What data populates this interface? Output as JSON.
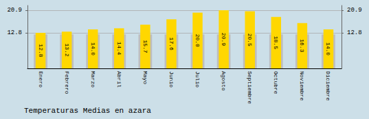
{
  "chart_data": {
    "type": "bar",
    "title": "Temperaturas Medias en azara",
    "categories": [
      "Enero",
      "Febrero",
      "Marzo",
      "Abril",
      "Mayo",
      "Junio",
      "Julio",
      "Agosto",
      "Septiembre",
      "Octubre",
      "Noviembre",
      "Diciembre"
    ],
    "series": [
      {
        "color": "#BEBEBE",
        "values": [
          12.2,
          12.2,
          12.2,
          12.2,
          12.2,
          12.2,
          12.2,
          12.2,
          12.2,
          12.2,
          12.2,
          12.2
        ]
      },
      {
        "color": "#FFD700",
        "values": [
          12.8,
          13.2,
          14.0,
          14.4,
          15.7,
          17.6,
          20.0,
          20.9,
          20.5,
          18.5,
          16.3,
          14.0
        ],
        "value_labels": [
          "12.8",
          "13.2",
          "14.0",
          "14.4",
          "15.7",
          "17.6",
          "20.0",
          "20.9",
          "20.5",
          "18.5",
          "16.3",
          "14.0"
        ]
      }
    ],
    "ylim": [
      0,
      22.6
    ],
    "yticks": [
      12.8,
      20.9
    ],
    "grid": true,
    "data_labels": true
  }
}
